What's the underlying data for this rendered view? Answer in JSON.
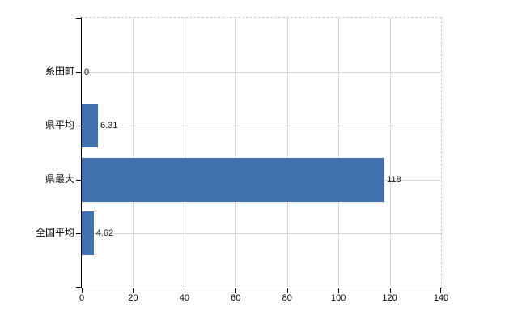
{
  "chart_data": {
    "type": "bar",
    "orientation": "horizontal",
    "title": "",
    "categories": [
      "糸田町",
      "県平均",
      "県最大",
      "全国平均"
    ],
    "values": [
      0,
      6.31,
      118,
      4.62
    ],
    "value_labels": [
      "0",
      "6.31",
      "118",
      "4.62"
    ],
    "x_ticks": [
      0,
      20,
      40,
      60,
      80,
      100,
      120,
      140
    ],
    "x_tick_labels": [
      "0",
      "20",
      "40",
      "60",
      "80",
      "100",
      "120",
      "140"
    ],
    "xlim": [
      0,
      140
    ],
    "grid": true,
    "legend": "none",
    "colors": {
      "bar": "#4070ad",
      "grid": "#d6d6d6",
      "plot_border": "#d2cad0",
      "axis": "#000000",
      "value_text": "#1a1a1a",
      "label_text": "#000000",
      "background": "#ffffff"
    }
  }
}
